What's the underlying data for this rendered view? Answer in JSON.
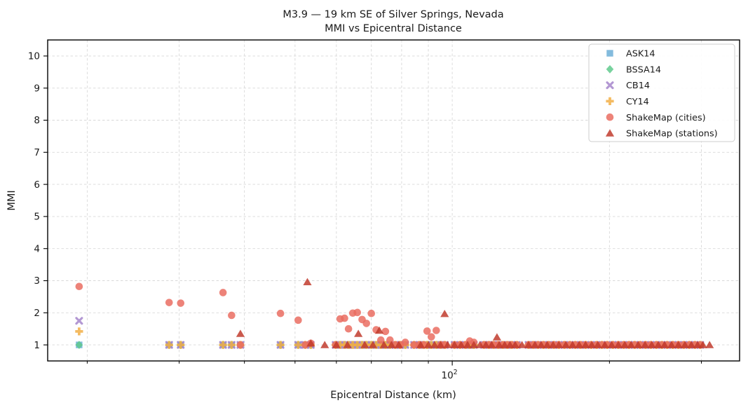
{
  "title": {
    "line1": "M3.9 — 19 km SE of Silver Springs, Nevada",
    "line2": "MMI vs Epicentral Distance"
  },
  "colors": {
    "ask14": "#6baed6",
    "bssa14": "#5ec98c",
    "cb14": "#a584cb",
    "cy14": "#f2ae44",
    "shakemap_cities": "#e96b5f",
    "shakemap_stations": "#c0392b",
    "grid": "#d8d8d8",
    "axis": "#000000",
    "text": "#1a1a1a",
    "legend_border": "#cccccc"
  },
  "chart_data": {
    "type": "scatter",
    "title": "M3.9 — 19 km SE of Silver Springs, Nevada\nMMI vs Epicentral Distance",
    "xlabel": "Epicentral Distance (km)",
    "ylabel": "MMI",
    "x_scale": "log",
    "xlim": [
      16.8,
      355
    ],
    "ylim": [
      0.5,
      10.5
    ],
    "grid": true,
    "legend_position": "upper right",
    "y_ticks": [
      1,
      2,
      3,
      4,
      5,
      6,
      7,
      8,
      9,
      10
    ],
    "x_major_ticks": [
      {
        "value": 100,
        "base": "10",
        "exp": "2"
      }
    ],
    "x_minor_ticks": [
      20,
      30,
      40,
      50,
      60,
      70,
      80,
      90,
      200,
      300
    ],
    "x_cities": [
      19.3,
      28.7,
      30.2,
      36.4,
      37.8,
      39.3,
      46.9,
      50.7,
      52.3,
      53.6,
      59.8,
      61,
      62.2,
      63.3,
      64.5,
      65.8,
      67.2,
      68.5,
      70,
      71.5,
      73,
      74.5,
      76,
      77.8,
      79.5,
      81.3,
      84.5,
      86.5,
      88.2,
      89.5,
      91.2,
      93.2,
      95,
      96.8,
      101,
      103.5,
      106,
      108,
      110,
      115,
      117.5,
      120,
      122.5,
      125,
      127.5,
      130,
      133,
      140,
      143,
      146,
      149.5,
      153,
      156.5,
      160,
      164,
      168,
      172,
      176,
      180,
      184.5,
      189,
      193.5,
      198,
      203,
      208,
      213,
      218,
      223.5,
      229,
      234.5,
      240,
      246,
      252,
      258,
      264.5,
      271,
      277.5,
      284.5,
      291.5,
      298.5
    ],
    "series": [
      {
        "name": "ASK14",
        "marker": "square",
        "color": "#6baed6",
        "x": "x_cities",
        "y": [
          1,
          1,
          1,
          1,
          1,
          1,
          1,
          1,
          1,
          1,
          1,
          1,
          1,
          1,
          1,
          1,
          1,
          1,
          1,
          1,
          1,
          1,
          1,
          1,
          1,
          1,
          1,
          1,
          1,
          1,
          1,
          1,
          1,
          1,
          1,
          1,
          1,
          1,
          1,
          1,
          1,
          1,
          1,
          1,
          1,
          1,
          1,
          1,
          1,
          1,
          1,
          1,
          1,
          1,
          1,
          1,
          1,
          1,
          1,
          1,
          1,
          1,
          1,
          1,
          1,
          1,
          1,
          1,
          1,
          1,
          1,
          1,
          1,
          1,
          1,
          1,
          1,
          1,
          1,
          1
        ]
      },
      {
        "name": "BSSA14",
        "marker": "diamond",
        "color": "#5ec98c",
        "x": "x_cities",
        "y": [
          1,
          1,
          1,
          1,
          1,
          1,
          1,
          1,
          1,
          1,
          1,
          1,
          1,
          1,
          1,
          1,
          1,
          1,
          1,
          1,
          1,
          1,
          1,
          1,
          1,
          1,
          1,
          1,
          1,
          1,
          1,
          1,
          1,
          1,
          1,
          1,
          1,
          1,
          1,
          1,
          1,
          1,
          1,
          1,
          1,
          1,
          1,
          1,
          1,
          1,
          1,
          1,
          1,
          1,
          1,
          1,
          1,
          1,
          1,
          1,
          1,
          1,
          1,
          1,
          1,
          1,
          1,
          1,
          1,
          1,
          1,
          1,
          1,
          1,
          1,
          1,
          1,
          1,
          1,
          1
        ]
      },
      {
        "name": "CB14",
        "marker": "x",
        "color": "#a584cb",
        "x": "x_cities",
        "y": [
          1.75,
          1,
          1,
          1,
          1,
          1,
          1,
          1,
          1,
          1,
          1,
          1,
          1,
          1,
          1,
          1,
          1,
          1,
          1,
          1,
          1,
          1,
          1,
          1,
          1,
          1,
          1,
          1,
          1,
          1,
          1,
          1,
          1,
          1,
          1,
          1,
          1,
          1,
          1,
          1,
          1,
          1,
          1,
          1,
          1,
          1,
          1,
          1,
          1,
          1,
          1,
          1,
          1,
          1,
          1,
          1,
          1,
          1,
          1,
          1,
          1,
          1,
          1,
          1,
          1,
          1,
          1,
          1,
          1,
          1,
          1,
          1,
          1,
          1,
          1,
          1,
          1,
          1,
          1,
          1
        ]
      },
      {
        "name": "CY14",
        "marker": "plus",
        "color": "#f2ae44",
        "x": "x_cities",
        "y": [
          1.42,
          1,
          1,
          1,
          1,
          1,
          1,
          1,
          1,
          1,
          1,
          1,
          1,
          1,
          1,
          1,
          1,
          1,
          1,
          1,
          1,
          1,
          1,
          1,
          1,
          1,
          1,
          1,
          1,
          1,
          1,
          1,
          1,
          1,
          1,
          1,
          1,
          1,
          1,
          1,
          1,
          1,
          1,
          1,
          1,
          1,
          1,
          1,
          1,
          1,
          1,
          1,
          1,
          1,
          1,
          1,
          1,
          1,
          1,
          1,
          1,
          1,
          1,
          1,
          1,
          1,
          1,
          1,
          1,
          1,
          1,
          1,
          1,
          1,
          1,
          1,
          1,
          1,
          1,
          1
        ]
      },
      {
        "name": "ShakeMap (cities)",
        "marker": "circle",
        "color": "#e96b5f",
        "x": "x_cities",
        "y": [
          2.82,
          2.32,
          2.3,
          2.63,
          1.92,
          1,
          1.98,
          1.77,
          1,
          1.05,
          1,
          1.81,
          1.83,
          1.5,
          1.99,
          2.01,
          1.79,
          1.67,
          1.98,
          1.47,
          1.15,
          1.42,
          1.15,
          1,
          1,
          1.08,
          1,
          1,
          1,
          1.43,
          1.25,
          1.45,
          1,
          1,
          1,
          1,
          1,
          1.12,
          1.08,
          1,
          1,
          1,
          1,
          1,
          1,
          1,
          1,
          1,
          1,
          1,
          1,
          1,
          1,
          1,
          1,
          1,
          1,
          1,
          1,
          1,
          1,
          1,
          1,
          1,
          1,
          1,
          1,
          1,
          1,
          1,
          1,
          1,
          1,
          1,
          1,
          1,
          1,
          1,
          1,
          1
        ]
      },
      {
        "name": "ShakeMap (stations)",
        "marker": "triangle",
        "color": "#c0392b",
        "points": [
          [
            39.3,
            1.35
          ],
          [
            52.8,
            2.96
          ],
          [
            53.6,
            1.05
          ],
          [
            57,
            1
          ],
          [
            60,
            1
          ],
          [
            63,
            1
          ],
          [
            66.1,
            1.35
          ],
          [
            68,
            1
          ],
          [
            70.5,
            1
          ],
          [
            72.5,
            1.45
          ],
          [
            74,
            1
          ],
          [
            76.5,
            1
          ],
          [
            79,
            1
          ],
          [
            87,
            1
          ],
          [
            90,
            1
          ],
          [
            92.5,
            1
          ],
          [
            95,
            1
          ],
          [
            96.7,
            1.97
          ],
          [
            98,
            1
          ],
          [
            101,
            1
          ],
          [
            104,
            1
          ],
          [
            107,
            1
          ],
          [
            110,
            1
          ],
          [
            113,
            1
          ],
          [
            116,
            1
          ],
          [
            119,
            1
          ],
          [
            121.8,
            1.24
          ],
          [
            123,
            1
          ],
          [
            126,
            1
          ],
          [
            129,
            1
          ],
          [
            132,
            1
          ],
          [
            136,
            1
          ],
          [
            140,
            1
          ],
          [
            144,
            1
          ],
          [
            148,
            1
          ],
          [
            152,
            1
          ],
          [
            156,
            1
          ],
          [
            160,
            1
          ],
          [
            165,
            1
          ],
          [
            170,
            1
          ],
          [
            175,
            1
          ],
          [
            180,
            1
          ],
          [
            185,
            1
          ],
          [
            190,
            1
          ],
          [
            196,
            1
          ],
          [
            202,
            1
          ],
          [
            208,
            1
          ],
          [
            214,
            1
          ],
          [
            220,
            1
          ],
          [
            227,
            1
          ],
          [
            234,
            1
          ],
          [
            241,
            1
          ],
          [
            248,
            1
          ],
          [
            255,
            1
          ],
          [
            263,
            1
          ],
          [
            271,
            1
          ],
          [
            279,
            1
          ],
          [
            287,
            1
          ],
          [
            295,
            1
          ],
          [
            302,
            1
          ],
          [
            311,
            1
          ]
        ]
      }
    ]
  }
}
